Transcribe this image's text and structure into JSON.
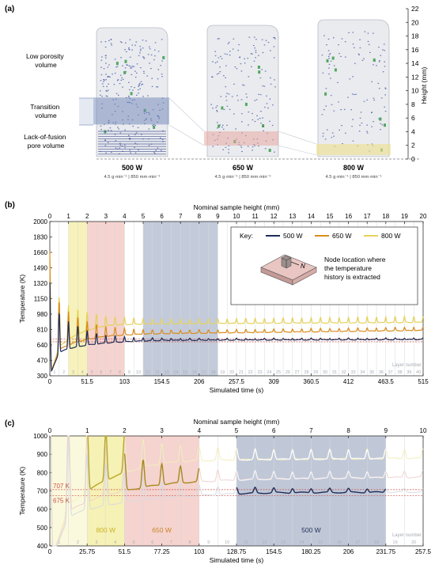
{
  "panel_a": {
    "label": "(a)",
    "left_labels": [
      "Low porosity\nvolume",
      "Transition\nvolume",
      "Lack-of-fusion\npore volume"
    ],
    "samples": [
      {
        "power": "500 W",
        "params": "4.5 g·min⁻¹ | 850 mm·min⁻¹"
      },
      {
        "power": "650 W",
        "params": "4.5 g·min⁻¹ | 850 mm·min⁻¹"
      },
      {
        "power": "800 W",
        "params": "4.5 g·min⁻¹ | 850 mm·min⁻¹"
      }
    ],
    "axis_label": "Height (mm)",
    "ticks": [
      0,
      2,
      4,
      6,
      8,
      10,
      12,
      14,
      16,
      18,
      20,
      22
    ]
  },
  "panel_b": {
    "label": "(b)",
    "key_title": "Key:",
    "node_text": "Node location where\nthe temperature\nhistory is extracted",
    "node_letter": "N",
    "layer_number_label": "Layer number"
  },
  "panel_c": {
    "label": "(c)",
    "ref_labels": [
      "707 K",
      "675 K"
    ],
    "region_labels": [
      "800 W",
      "650 W",
      "500 W"
    ],
    "layer_number_label": "Layer number"
  },
  "colors": {
    "w500": "#1f2d57",
    "w650": "#d98c1e",
    "w800": "#e6d25a",
    "band_yellow": "#f6f1b4",
    "band_red": "#f2c8c3",
    "band_blue": "#b9c2d4",
    "ref_line": "#c8504a"
  },
  "chart_data": [
    {
      "type": "line",
      "title": "",
      "x_top_label": "Nominal sample height (mm)",
      "x_top_ticks": [
        0,
        1,
        2,
        3,
        4,
        5,
        6,
        7,
        8,
        9,
        10,
        11,
        12,
        13,
        14,
        15,
        16,
        17,
        18,
        19,
        20
      ],
      "xlabel": "Simulated time (s)",
      "xlim": [
        0,
        515
      ],
      "x_ticks": [
        0,
        51.5,
        103,
        154.5,
        206,
        257.5,
        309,
        360.5,
        412,
        463.5,
        515
      ],
      "ylabel": "Temperature (K)",
      "ylim": [
        300,
        2000
      ],
      "y_ticks": [
        300,
        470,
        640,
        810,
        980,
        1150,
        1320,
        1490,
        1660,
        1830,
        2000
      ],
      "layer_numbers": [
        1,
        2,
        3,
        4,
        5,
        6,
        7,
        8,
        9,
        10,
        11,
        12,
        13,
        14,
        15,
        16,
        17,
        18,
        19,
        20,
        21,
        22,
        23,
        24,
        25,
        26,
        27,
        28,
        29,
        30,
        31,
        32,
        33,
        34,
        35,
        36,
        37,
        38,
        39,
        40
      ],
      "reference_lines_K": [
        707,
        675
      ],
      "shaded_layers": {
        "800 W": [
          3,
          4
        ],
        "650 W": [
          5,
          8
        ],
        "500 W": [
          11,
          18
        ]
      },
      "legend_position": "top-right",
      "series": [
        {
          "name": "500 W",
          "x": [
            0,
            12.9,
            25.75,
            38.6,
            51.5,
            64.4,
            77.25,
            90.1,
            103,
            128.75,
            154.5,
            206,
            257.5,
            309,
            360.5,
            412,
            463.5,
            515
          ],
          "y_peak": [
            1330,
            1000,
            900,
            850,
            800,
            770,
            750,
            740,
            730,
            720,
            715,
            712,
            712,
            713,
            714,
            715,
            716,
            718
          ],
          "y_min": [
            300,
            560,
            600,
            620,
            640,
            650,
            660,
            670,
            675,
            685,
            690,
            692,
            694,
            695,
            696,
            697,
            698,
            700
          ]
        },
        {
          "name": "650 W",
          "x": [
            0,
            12.9,
            25.75,
            38.6,
            51.5,
            64.4,
            77.25,
            90.1,
            103,
            128.75,
            154.5,
            206,
            257.5,
            309,
            360.5,
            412,
            463.5,
            515
          ],
          "y_peak": [
            1670,
            1130,
            1010,
            950,
            900,
            870,
            850,
            835,
            820,
            810,
            805,
            805,
            810,
            815,
            820,
            825,
            830,
            840
          ],
          "y_min": [
            300,
            590,
            640,
            680,
            700,
            720,
            735,
            745,
            750,
            760,
            765,
            770,
            775,
            780,
            785,
            790,
            795,
            800
          ]
        },
        {
          "name": "800 W",
          "x": [
            0,
            12.9,
            25.75,
            38.6,
            51.5,
            64.4,
            77.25,
            90.1,
            103,
            128.75,
            154.5,
            206,
            257.5,
            309,
            360.5,
            412,
            463.5,
            515
          ],
          "y_peak": [
            1520,
            1180,
            1080,
            1040,
            1000,
            980,
            960,
            950,
            940,
            930,
            925,
            925,
            930,
            935,
            940,
            945,
            950,
            955
          ],
          "y_min": [
            300,
            620,
            700,
            760,
            800,
            830,
            850,
            860,
            865,
            870,
            872,
            875,
            878,
            880,
            882,
            884,
            886,
            890
          ]
        }
      ]
    },
    {
      "type": "line",
      "title": "",
      "x_top_label": "Nominal sample height (mm)",
      "x_top_ticks": [
        0,
        1,
        2,
        3,
        4,
        5,
        6,
        7,
        8,
        9,
        10
      ],
      "xlabel": "Simulated time (s)",
      "xlim": [
        0,
        257.5
      ],
      "x_ticks": [
        0,
        25.75,
        51.5,
        77.25,
        103,
        128.75,
        154.5,
        180.25,
        206,
        231.75,
        257.5
      ],
      "ylabel": "Temperature (K)",
      "ylim": [
        400,
        1000
      ],
      "y_ticks": [
        400,
        500,
        600,
        700,
        800,
        900,
        1000
      ],
      "layer_numbers": [
        1,
        2,
        3,
        4,
        5,
        6,
        7,
        8,
        9,
        10,
        11,
        12,
        13,
        14,
        15,
        16,
        17,
        18,
        19,
        20
      ],
      "reference_lines_K": [
        707,
        675
      ],
      "highlight_ranges": [
        {
          "series": "800 W",
          "x": [
            25.75,
            51.5
          ]
        },
        {
          "series": "650 W",
          "x": [
            51.5,
            103
          ]
        },
        {
          "series": "500 W",
          "x": [
            128.75,
            231.75
          ]
        }
      ]
    }
  ]
}
